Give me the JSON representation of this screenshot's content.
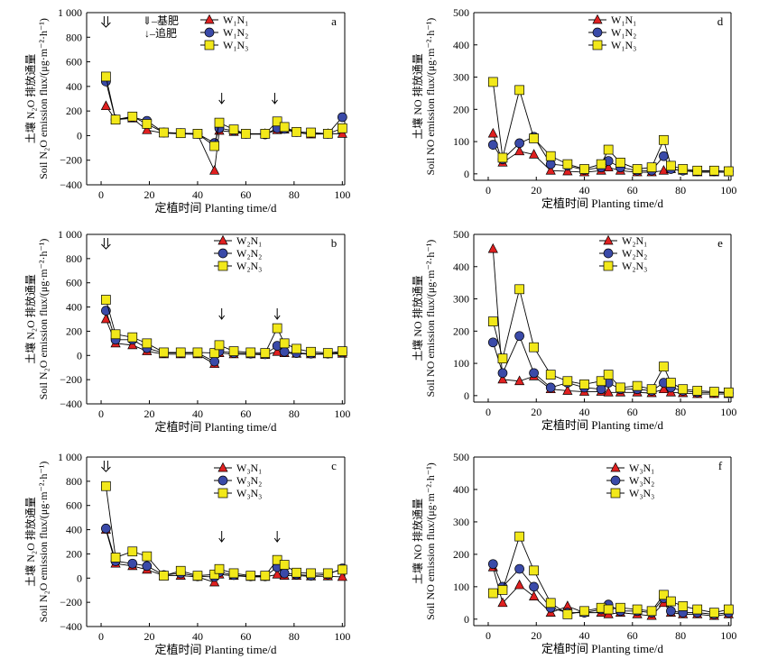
{
  "fertilizer_legend": {
    "base_symbol": "⇓",
    "base_label": "–基肥",
    "top_symbol": "↓",
    "top_label": "–追肥"
  },
  "colors": {
    "N1": "#e02020",
    "N2": "#3a4aa8",
    "N3": "#f2e81a"
  },
  "chart_data": [
    {
      "id": "a",
      "type": "line",
      "panel_label": "a",
      "xlabel": "定植时间 Planting time/d",
      "ylabel_line1": "土壤 N₂O 排放通量",
      "ylabel_line2": "Soil N₂O emission flux/(μg·m⁻²·h⁻¹)",
      "xlim": [
        -6,
        101
      ],
      "ylim": [
        -400,
        1000
      ],
      "xticks": [
        0,
        20,
        40,
        60,
        80,
        100
      ],
      "yticks": [
        -400,
        -200,
        0,
        200,
        400,
        600,
        800,
        1000
      ],
      "ytick_labels": [
        "−400",
        "−200",
        "0",
        "200",
        "400",
        "600",
        "800",
        "1 000"
      ],
      "show_fert_legend": true,
      "arrows": [
        {
          "x": 2,
          "kind": "base"
        },
        {
          "x": 50,
          "kind": "top"
        },
        {
          "x": 72,
          "kind": "top"
        }
      ],
      "x": [
        2,
        6,
        13,
        19,
        26,
        33,
        40,
        47,
        49,
        55,
        60,
        68,
        73,
        76,
        81,
        87,
        94,
        100
      ],
      "series": [
        {
          "name": "W₁N₁",
          "marker": "triangle",
          "color_key": "N1",
          "values": [
            240,
            130,
            140,
            45,
            20,
            15,
            10,
            -285,
            40,
            30,
            10,
            15,
            45,
            50,
            25,
            10,
            15,
            15
          ]
        },
        {
          "name": "W₁N₂",
          "marker": "circle",
          "color_key": "N2",
          "values": [
            440,
            130,
            150,
            120,
            25,
            20,
            15,
            -60,
            60,
            40,
            15,
            10,
            60,
            55,
            30,
            20,
            15,
            150
          ]
        },
        {
          "name": "W₁N₃",
          "marker": "square",
          "color_key": "N3",
          "values": [
            480,
            130,
            155,
            95,
            25,
            20,
            15,
            -85,
            105,
            50,
            15,
            15,
            115,
            70,
            30,
            25,
            15,
            60
          ]
        }
      ]
    },
    {
      "id": "d",
      "type": "line",
      "panel_label": "d",
      "xlabel": "定植时间 Planting time/d",
      "ylabel_line1": "土壤 NO 排放通量",
      "ylabel_line2": "Soil NO emission flux/(μg·m⁻²·h⁻¹)",
      "xlim": [
        -6,
        101
      ],
      "ylim": [
        -20,
        500
      ],
      "xticks": [
        0,
        20,
        40,
        60,
        80,
        100
      ],
      "yticks": [
        0,
        100,
        200,
        300,
        400,
        500
      ],
      "ytick_labels": [
        "0",
        "100",
        "200",
        "300",
        "400",
        "500"
      ],
      "show_fert_legend": false,
      "arrows": [],
      "x": [
        2,
        6,
        13,
        19,
        26,
        33,
        40,
        47,
        50,
        55,
        62,
        68,
        73,
        76,
        81,
        87,
        94,
        100
      ],
      "series": [
        {
          "name": "W₁N₁",
          "marker": "triangle",
          "color_key": "N1",
          "values": [
            125,
            35,
            70,
            60,
            10,
            8,
            5,
            10,
            20,
            10,
            5,
            5,
            10,
            15,
            10,
            5,
            5,
            5
          ]
        },
        {
          "name": "W₁N₂",
          "marker": "circle",
          "color_key": "N2",
          "values": [
            90,
            45,
            95,
            115,
            30,
            25,
            12,
            20,
            40,
            20,
            10,
            10,
            55,
            15,
            10,
            8,
            8,
            8
          ]
        },
        {
          "name": "W₁N₃",
          "marker": "square",
          "color_key": "N3",
          "values": [
            285,
            50,
            260,
            110,
            55,
            30,
            15,
            30,
            75,
            35,
            15,
            20,
            105,
            25,
            15,
            10,
            10,
            8
          ]
        }
      ]
    },
    {
      "id": "b",
      "type": "line",
      "panel_label": "b",
      "xlabel": "定植时间 Planting time/d",
      "ylabel_line1": "土壤 N₂O 排放通量",
      "ylabel_line2": "Soil N₂O emission flux/(μg·m⁻²·h⁻¹)",
      "xlim": [
        -6,
        101
      ],
      "ylim": [
        -400,
        1000
      ],
      "xticks": [
        0,
        20,
        40,
        60,
        80,
        100
      ],
      "yticks": [
        -400,
        -200,
        0,
        200,
        400,
        600,
        800,
        1000
      ],
      "ytick_labels": [
        "−400",
        "−200",
        "0",
        "200",
        "400",
        "600",
        "800",
        "1 000"
      ],
      "show_fert_legend": false,
      "arrows": [
        {
          "x": 2,
          "kind": "base"
        },
        {
          "x": 50,
          "kind": "top"
        },
        {
          "x": 73,
          "kind": "top"
        }
      ],
      "x": [
        2,
        6,
        13,
        19,
        26,
        33,
        40,
        47,
        49,
        55,
        62,
        68,
        73,
        76,
        81,
        87,
        94,
        100
      ],
      "series": [
        {
          "name": "W₂N₁",
          "marker": "triangle",
          "color_key": "N1",
          "values": [
            300,
            100,
            85,
            35,
            10,
            10,
            10,
            -70,
            20,
            10,
            10,
            5,
            30,
            20,
            15,
            10,
            10,
            15
          ]
        },
        {
          "name": "W₂N₂",
          "marker": "circle",
          "color_key": "N2",
          "values": [
            370,
            130,
            130,
            60,
            20,
            20,
            20,
            -50,
            35,
            20,
            15,
            10,
            80,
            30,
            20,
            15,
            15,
            25
          ]
        },
        {
          "name": "W₂N₃",
          "marker": "square",
          "color_key": "N3",
          "values": [
            460,
            175,
            150,
            100,
            25,
            25,
            25,
            20,
            85,
            35,
            25,
            20,
            225,
            100,
            55,
            30,
            20,
            35
          ]
        }
      ]
    },
    {
      "id": "e",
      "type": "line",
      "panel_label": "e",
      "xlabel": "定植时间 Planting time/d",
      "ylabel_line1": "土壤 NO 排放通量",
      "ylabel_line2": "Soil NO emission flux/(μg·m⁻²·h⁻¹)",
      "xlim": [
        -6,
        101
      ],
      "ylim": [
        -20,
        500
      ],
      "xticks": [
        0,
        20,
        40,
        60,
        80,
        100
      ],
      "yticks": [
        0,
        100,
        200,
        300,
        400,
        500
      ],
      "ytick_labels": [
        "0",
        "100",
        "200",
        "300",
        "400",
        "500"
      ],
      "show_fert_legend": false,
      "arrows": [],
      "x": [
        2,
        6,
        13,
        19,
        26,
        33,
        40,
        47,
        50,
        55,
        62,
        68,
        73,
        76,
        81,
        87,
        94,
        100
      ],
      "series": [
        {
          "name": "W₂N₁",
          "marker": "triangle",
          "color_key": "N1",
          "values": [
            455,
            50,
            45,
            60,
            20,
            15,
            12,
            12,
            10,
            10,
            10,
            8,
            20,
            10,
            8,
            5,
            5,
            5
          ]
        },
        {
          "name": "W₂N₂",
          "marker": "circle",
          "color_key": "N2",
          "values": [
            165,
            70,
            185,
            70,
            25,
            40,
            25,
            20,
            40,
            20,
            20,
            15,
            40,
            25,
            15,
            10,
            10,
            8
          ]
        },
        {
          "name": "W₂N₃",
          "marker": "square",
          "color_key": "N3",
          "values": [
            230,
            115,
            330,
            150,
            65,
            45,
            35,
            45,
            65,
            25,
            30,
            20,
            90,
            40,
            20,
            15,
            12,
            10
          ]
        }
      ]
    },
    {
      "id": "c",
      "type": "line",
      "panel_label": "c",
      "xlabel": "定植时间 Planting time/d",
      "ylabel_line1": "土壤 N₂O 排放通量",
      "ylabel_line2": "Soil N₂O emission flux/(μg·m⁻²·h⁻¹)",
      "xlim": [
        -6,
        101
      ],
      "ylim": [
        -400,
        1000
      ],
      "xticks": [
        0,
        20,
        40,
        60,
        80,
        100
      ],
      "yticks": [
        -400,
        -200,
        0,
        200,
        400,
        600,
        800,
        1000
      ],
      "ytick_labels": [
        "−400",
        "−200",
        "0",
        "200",
        "400",
        "600",
        "800",
        "1 000"
      ],
      "show_fert_legend": false,
      "arrows": [
        {
          "x": 2,
          "kind": "base"
        },
        {
          "x": 50,
          "kind": "top"
        },
        {
          "x": 73,
          "kind": "top"
        }
      ],
      "x": [
        2,
        6,
        13,
        19,
        26,
        33,
        40,
        47,
        49,
        55,
        62,
        68,
        73,
        76,
        81,
        87,
        94,
        100
      ],
      "series": [
        {
          "name": "W₃N₁",
          "marker": "triangle",
          "color_key": "N1",
          "values": [
            400,
            120,
            100,
            70,
            20,
            20,
            10,
            -35,
            30,
            20,
            10,
            10,
            30,
            20,
            20,
            15,
            15,
            10
          ]
        },
        {
          "name": "W₃N₂",
          "marker": "circle",
          "color_key": "N2",
          "values": [
            410,
            140,
            120,
            100,
            25,
            40,
            15,
            10,
            50,
            25,
            15,
            15,
            90,
            40,
            30,
            20,
            30,
            80
          ]
        },
        {
          "name": "W₃N₃",
          "marker": "square",
          "color_key": "N3",
          "values": [
            760,
            170,
            220,
            180,
            20,
            60,
            20,
            30,
            75,
            40,
            20,
            20,
            150,
            110,
            45,
            40,
            40,
            70
          ]
        }
      ]
    },
    {
      "id": "f",
      "type": "line",
      "panel_label": "f",
      "xlabel": "定植时间 Planting time/d",
      "ylabel_line1": "土壤 NO 排放通量",
      "ylabel_line2": "Soil NO emission flux/(μg·m⁻²·h⁻¹)",
      "xlim": [
        -6,
        101
      ],
      "ylim": [
        -20,
        500
      ],
      "xticks": [
        0,
        20,
        40,
        60,
        80,
        100
      ],
      "yticks": [
        0,
        100,
        200,
        300,
        400,
        500
      ],
      "ytick_labels": [
        "0",
        "100",
        "200",
        "300",
        "400",
        "500"
      ],
      "show_fert_legend": false,
      "arrows": [],
      "x": [
        2,
        6,
        13,
        19,
        26,
        33,
        40,
        47,
        50,
        55,
        62,
        68,
        73,
        76,
        81,
        87,
        94,
        100
      ],
      "series": [
        {
          "name": "W₃N₁",
          "marker": "triangle",
          "color_key": "N1",
          "values": [
            160,
            50,
            105,
            70,
            20,
            40,
            20,
            20,
            15,
            20,
            15,
            10,
            50,
            20,
            15,
            15,
            10,
            15
          ]
        },
        {
          "name": "W₃N₂",
          "marker": "circle",
          "color_key": "N2",
          "values": [
            170,
            100,
            155,
            100,
            35,
            20,
            20,
            30,
            45,
            25,
            25,
            20,
            65,
            25,
            20,
            20,
            15,
            20
          ]
        },
        {
          "name": "W₃N₃",
          "marker": "square",
          "color_key": "N3",
          "values": [
            80,
            90,
            255,
            150,
            50,
            15,
            25,
            35,
            30,
            35,
            30,
            25,
            75,
            55,
            40,
            30,
            20,
            30
          ]
        }
      ]
    }
  ]
}
